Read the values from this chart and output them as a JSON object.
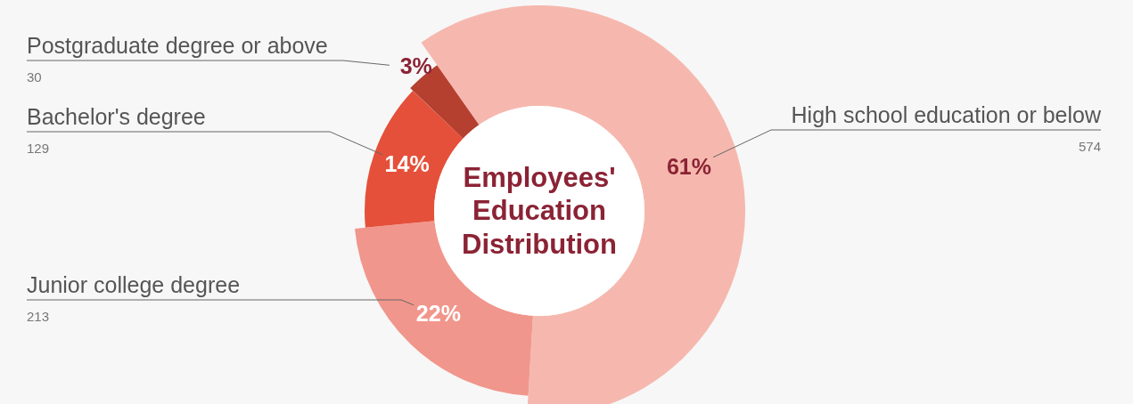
{
  "chart_data": {
    "type": "donut",
    "title": "Employees' Education Distribution",
    "categories": [
      "High school education or below",
      "Junior college degree",
      "Bachelor's degree",
      "Postgraduate degree or above"
    ],
    "values": [
      574,
      213,
      129,
      30
    ],
    "value_labels": [
      "574",
      "213",
      "129",
      "30"
    ],
    "annotations": [
      {
        "text": "61%",
        "x": "High school education or below"
      },
      {
        "text": "22%",
        "x": "Junior college degree"
      },
      {
        "text": "14%",
        "x": "Bachelor's degree"
      },
      {
        "text": "3%",
        "x": "Postgraduate degree or above"
      }
    ],
    "colors": [
      "#f6b8ae",
      "#f1968c",
      "#e5503a",
      "#b5402f"
    ],
    "legend": false
  }
}
